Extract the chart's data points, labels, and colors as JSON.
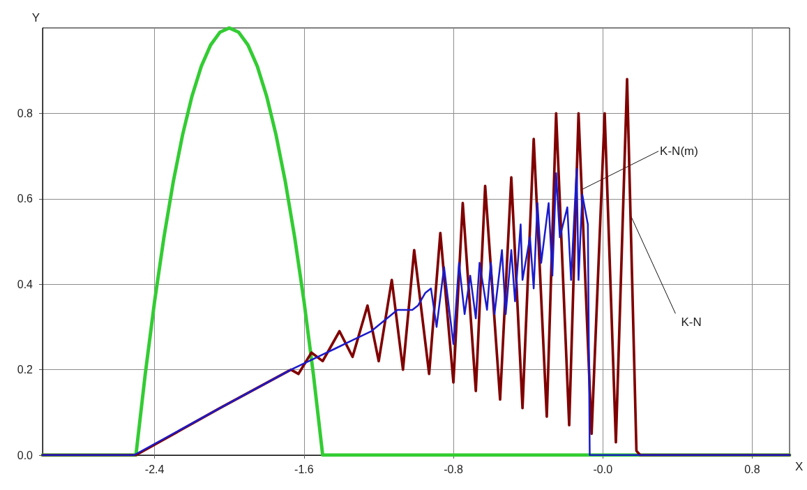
{
  "chart_data": {
    "type": "line",
    "xlabel": "X",
    "ylabel": "Y",
    "xlim": [
      -3,
      1
    ],
    "ylim": [
      0,
      1
    ],
    "xticks": [
      -2.4,
      -1.6,
      -0.8,
      {
        "value": 0,
        "label": "-0.0"
      },
      0.8
    ],
    "yticks": [
      {
        "value": 0,
        "label": "0.0"
      },
      0.2,
      0.4,
      0.6,
      0.8
    ],
    "grid": true,
    "marker": "none",
    "line_style": "solid",
    "annotations": [
      {
        "text": "K-N(m)",
        "x": -0.12,
        "y": 0.62
      },
      {
        "text": "K-N",
        "x": 0.15,
        "y": 0.56
      }
    ],
    "series": [
      {
        "color": "#33cc33",
        "x": [
          -3,
          -2.5,
          -2.45,
          -2.4,
          -2.35,
          -2.3,
          -2.25,
          -2.2,
          -2.15,
          -2.1,
          -2.05,
          -2.0,
          -1.95,
          -1.9,
          -1.85,
          -1.8,
          -1.75,
          -1.7,
          -1.65,
          -1.6,
          -1.55,
          -1.5,
          1
        ],
        "values": [
          0,
          0,
          0.19,
          0.36,
          0.51,
          0.64,
          0.75,
          0.84,
          0.91,
          0.96,
          0.99,
          1.0,
          0.99,
          0.96,
          0.91,
          0.84,
          0.75,
          0.64,
          0.51,
          0.36,
          0.19,
          0,
          0
        ]
      },
      {
        "color": "#800000",
        "x": [
          -3,
          -2.5,
          -2.05,
          -1.67,
          -1.63,
          -1.56,
          -1.5,
          -1.41,
          -1.34,
          -1.26,
          -1.2,
          -1.13,
          -1.07,
          -1.01,
          -0.93,
          -0.87,
          -0.8,
          -0.75,
          -0.68,
          -0.63,
          -0.55,
          -0.49,
          -0.43,
          -0.37,
          -0.3,
          -0.25,
          -0.18,
          -0.13,
          -0.06,
          0.01,
          0.07,
          0.13,
          0.18,
          0.2,
          1
        ],
        "values": [
          0,
          0,
          0.11,
          0.2,
          0.19,
          0.24,
          0.22,
          0.29,
          0.23,
          0.35,
          0.22,
          0.41,
          0.2,
          0.48,
          0.19,
          0.52,
          0.17,
          0.59,
          0.15,
          0.63,
          0.13,
          0.65,
          0.11,
          0.74,
          0.09,
          0.8,
          0.07,
          0.8,
          0.05,
          0.8,
          0.03,
          0.88,
          0.01,
          0,
          0
        ]
      },
      {
        "color": "#1a1acc",
        "x": [
          -3,
          -2.51,
          -2.05,
          -1.67,
          -1.43,
          -1.24,
          -1.1,
          -1.02,
          -0.99,
          -0.95,
          -0.92,
          -0.89,
          -0.85,
          -0.8,
          -0.77,
          -0.74,
          -0.71,
          -0.68,
          -0.66,
          -0.62,
          -0.6,
          -0.58,
          -0.54,
          -0.52,
          -0.49,
          -0.47,
          -0.44,
          -0.43,
          -0.39,
          -0.37,
          -0.35,
          -0.33,
          -0.29,
          -0.27,
          -0.25,
          -0.23,
          -0.19,
          -0.17,
          -0.14,
          -0.13,
          -0.11,
          -0.08,
          -0.07,
          1
        ],
        "values": [
          0,
          0,
          0.11,
          0.2,
          0.25,
          0.29,
          0.34,
          0.34,
          0.35,
          0.38,
          0.39,
          0.3,
          0.44,
          0.26,
          0.45,
          0.33,
          0.42,
          0.32,
          0.45,
          0.34,
          0.45,
          0.33,
          0.48,
          0.33,
          0.48,
          0.36,
          0.54,
          0.41,
          0.51,
          0.39,
          0.59,
          0.45,
          0.59,
          0.42,
          0.66,
          0.51,
          0.58,
          0.41,
          0.67,
          0.41,
          0.61,
          0.54,
          0,
          0
        ]
      }
    ]
  }
}
